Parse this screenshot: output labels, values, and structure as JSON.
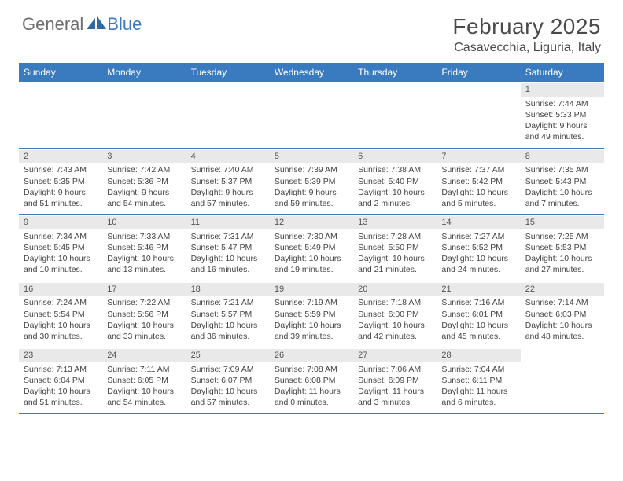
{
  "logo": {
    "text1": "General",
    "text2": "Blue"
  },
  "title": "February 2025",
  "location": "Casavecchia, Liguria, Italy",
  "colors": {
    "header_bg": "#3a7bbf",
    "header_text": "#ffffff",
    "daynum_bg": "#e9e9e9",
    "border": "#3a7bbf",
    "body_text": "#444444",
    "logo_gray": "#6d6d6d",
    "logo_blue": "#3a7bbf",
    "background": "#ffffff"
  },
  "typography": {
    "title_fontsize": 28,
    "location_fontsize": 16,
    "dayhead_fontsize": 12,
    "cell_fontsize": 10.5
  },
  "day_names": [
    "Sunday",
    "Monday",
    "Tuesday",
    "Wednesday",
    "Thursday",
    "Friday",
    "Saturday"
  ],
  "labels": {
    "sunrise": "Sunrise:",
    "sunset": "Sunset:",
    "daylight": "Daylight:"
  },
  "weeks": [
    [
      {
        "n": "",
        "sunrise": "",
        "sunset": "",
        "daylight1": "",
        "daylight2": ""
      },
      {
        "n": "",
        "sunrise": "",
        "sunset": "",
        "daylight1": "",
        "daylight2": ""
      },
      {
        "n": "",
        "sunrise": "",
        "sunset": "",
        "daylight1": "",
        "daylight2": ""
      },
      {
        "n": "",
        "sunrise": "",
        "sunset": "",
        "daylight1": "",
        "daylight2": ""
      },
      {
        "n": "",
        "sunrise": "",
        "sunset": "",
        "daylight1": "",
        "daylight2": ""
      },
      {
        "n": "",
        "sunrise": "",
        "sunset": "",
        "daylight1": "",
        "daylight2": ""
      },
      {
        "n": "1",
        "sunrise": "7:44 AM",
        "sunset": "5:33 PM",
        "daylight1": "9 hours",
        "daylight2": "and 49 minutes."
      }
    ],
    [
      {
        "n": "2",
        "sunrise": "7:43 AM",
        "sunset": "5:35 PM",
        "daylight1": "9 hours",
        "daylight2": "and 51 minutes."
      },
      {
        "n": "3",
        "sunrise": "7:42 AM",
        "sunset": "5:36 PM",
        "daylight1": "9 hours",
        "daylight2": "and 54 minutes."
      },
      {
        "n": "4",
        "sunrise": "7:40 AM",
        "sunset": "5:37 PM",
        "daylight1": "9 hours",
        "daylight2": "and 57 minutes."
      },
      {
        "n": "5",
        "sunrise": "7:39 AM",
        "sunset": "5:39 PM",
        "daylight1": "9 hours",
        "daylight2": "and 59 minutes."
      },
      {
        "n": "6",
        "sunrise": "7:38 AM",
        "sunset": "5:40 PM",
        "daylight1": "10 hours",
        "daylight2": "and 2 minutes."
      },
      {
        "n": "7",
        "sunrise": "7:37 AM",
        "sunset": "5:42 PM",
        "daylight1": "10 hours",
        "daylight2": "and 5 minutes."
      },
      {
        "n": "8",
        "sunrise": "7:35 AM",
        "sunset": "5:43 PM",
        "daylight1": "10 hours",
        "daylight2": "and 7 minutes."
      }
    ],
    [
      {
        "n": "9",
        "sunrise": "7:34 AM",
        "sunset": "5:45 PM",
        "daylight1": "10 hours",
        "daylight2": "and 10 minutes."
      },
      {
        "n": "10",
        "sunrise": "7:33 AM",
        "sunset": "5:46 PM",
        "daylight1": "10 hours",
        "daylight2": "and 13 minutes."
      },
      {
        "n": "11",
        "sunrise": "7:31 AM",
        "sunset": "5:47 PM",
        "daylight1": "10 hours",
        "daylight2": "and 16 minutes."
      },
      {
        "n": "12",
        "sunrise": "7:30 AM",
        "sunset": "5:49 PM",
        "daylight1": "10 hours",
        "daylight2": "and 19 minutes."
      },
      {
        "n": "13",
        "sunrise": "7:28 AM",
        "sunset": "5:50 PM",
        "daylight1": "10 hours",
        "daylight2": "and 21 minutes."
      },
      {
        "n": "14",
        "sunrise": "7:27 AM",
        "sunset": "5:52 PM",
        "daylight1": "10 hours",
        "daylight2": "and 24 minutes."
      },
      {
        "n": "15",
        "sunrise": "7:25 AM",
        "sunset": "5:53 PM",
        "daylight1": "10 hours",
        "daylight2": "and 27 minutes."
      }
    ],
    [
      {
        "n": "16",
        "sunrise": "7:24 AM",
        "sunset": "5:54 PM",
        "daylight1": "10 hours",
        "daylight2": "and 30 minutes."
      },
      {
        "n": "17",
        "sunrise": "7:22 AM",
        "sunset": "5:56 PM",
        "daylight1": "10 hours",
        "daylight2": "and 33 minutes."
      },
      {
        "n": "18",
        "sunrise": "7:21 AM",
        "sunset": "5:57 PM",
        "daylight1": "10 hours",
        "daylight2": "and 36 minutes."
      },
      {
        "n": "19",
        "sunrise": "7:19 AM",
        "sunset": "5:59 PM",
        "daylight1": "10 hours",
        "daylight2": "and 39 minutes."
      },
      {
        "n": "20",
        "sunrise": "7:18 AM",
        "sunset": "6:00 PM",
        "daylight1": "10 hours",
        "daylight2": "and 42 minutes."
      },
      {
        "n": "21",
        "sunrise": "7:16 AM",
        "sunset": "6:01 PM",
        "daylight1": "10 hours",
        "daylight2": "and 45 minutes."
      },
      {
        "n": "22",
        "sunrise": "7:14 AM",
        "sunset": "6:03 PM",
        "daylight1": "10 hours",
        "daylight2": "and 48 minutes."
      }
    ],
    [
      {
        "n": "23",
        "sunrise": "7:13 AM",
        "sunset": "6:04 PM",
        "daylight1": "10 hours",
        "daylight2": "and 51 minutes."
      },
      {
        "n": "24",
        "sunrise": "7:11 AM",
        "sunset": "6:05 PM",
        "daylight1": "10 hours",
        "daylight2": "and 54 minutes."
      },
      {
        "n": "25",
        "sunrise": "7:09 AM",
        "sunset": "6:07 PM",
        "daylight1": "10 hours",
        "daylight2": "and 57 minutes."
      },
      {
        "n": "26",
        "sunrise": "7:08 AM",
        "sunset": "6:08 PM",
        "daylight1": "11 hours",
        "daylight2": "and 0 minutes."
      },
      {
        "n": "27",
        "sunrise": "7:06 AM",
        "sunset": "6:09 PM",
        "daylight1": "11 hours",
        "daylight2": "and 3 minutes."
      },
      {
        "n": "28",
        "sunrise": "7:04 AM",
        "sunset": "6:11 PM",
        "daylight1": "11 hours",
        "daylight2": "and 6 minutes."
      },
      {
        "n": "",
        "sunrise": "",
        "sunset": "",
        "daylight1": "",
        "daylight2": ""
      }
    ]
  ]
}
